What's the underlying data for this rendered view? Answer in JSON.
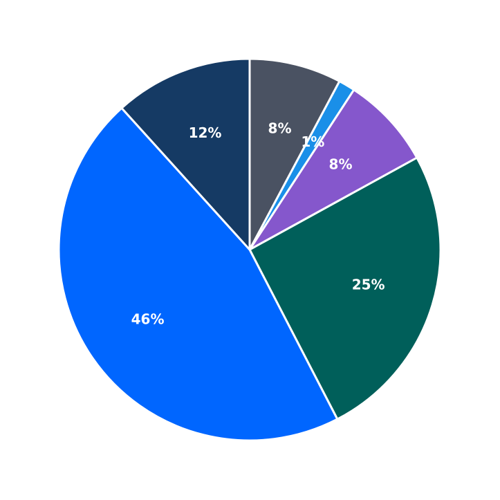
{
  "chart_data": {
    "type": "pie",
    "categories": [
      null,
      null,
      null,
      null,
      null,
      null
    ],
    "values": [
      7.8,
      1.4,
      7.8,
      25.4,
      45.9,
      11.7
    ],
    "value_labels": [
      "8%",
      "1%",
      "8%",
      "25%",
      "46%",
      "12%"
    ],
    "colors": [
      "#4a5262",
      "#1a8fe8",
      "#8557cc",
      "#005f5a",
      "#0066ff",
      "#153a64"
    ]
  }
}
